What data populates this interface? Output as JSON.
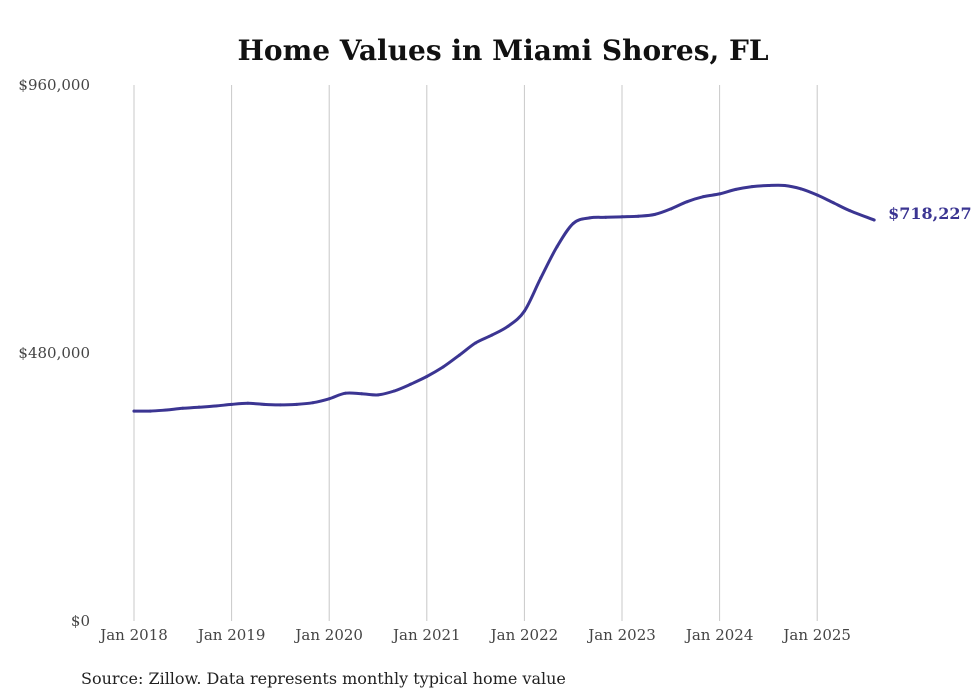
{
  "chart_data": {
    "type": "line",
    "title": "Home Values in Miami Shores, FL",
    "source": "Source: Zillow. Data represents monthly typical home value",
    "xlabel": "",
    "ylabel": "",
    "x_tick_labels": [
      "Jan 2018",
      "Jan 2019",
      "Jan 2020",
      "Jan 2021",
      "Jan 2022",
      "Jan 2023",
      "Jan 2024",
      "Jan 2025"
    ],
    "y_tick_labels": [
      "$960,000",
      "$480,000",
      "$0"
    ],
    "y_ticks": [
      960000,
      480000,
      0
    ],
    "ylim": [
      0,
      960000
    ],
    "xlim": [
      "2018-01",
      "2025-08"
    ],
    "grid": "vertical",
    "line_color": "#3b3592",
    "end_label": "$718,227",
    "series": [
      {
        "x": [
          "2018-01",
          "2018-03",
          "2018-05",
          "2018-07",
          "2018-09",
          "2018-11",
          "2019-01",
          "2019-03",
          "2019-05",
          "2019-07",
          "2019-09",
          "2019-11",
          "2020-01",
          "2020-03",
          "2020-05",
          "2020-07",
          "2020-09",
          "2020-11",
          "2021-01",
          "2021-03",
          "2021-05",
          "2021-07",
          "2021-09",
          "2021-11",
          "2022-01",
          "2022-03",
          "2022-05",
          "2022-07",
          "2022-09",
          "2022-11",
          "2023-01",
          "2023-03",
          "2023-05",
          "2023-07",
          "2023-09",
          "2023-11",
          "2024-01",
          "2024-03",
          "2024-05",
          "2024-07",
          "2024-09",
          "2024-11",
          "2025-01",
          "2025-03",
          "2025-05",
          "2025-08"
        ],
        "values": [
          376000,
          376000,
          378000,
          381000,
          383000,
          385000,
          388000,
          390000,
          388000,
          387000,
          388000,
          391000,
          398000,
          408000,
          407000,
          405000,
          412000,
          424000,
          438000,
          455000,
          476000,
          498000,
          512000,
          528000,
          555000,
          614000,
          670000,
          712000,
          722000,
          723000,
          724000,
          725000,
          728000,
          738000,
          751000,
          760000,
          765000,
          773000,
          778000,
          780000,
          780000,
          774000,
          763000,
          749000,
          735000,
          718227
        ]
      }
    ]
  }
}
